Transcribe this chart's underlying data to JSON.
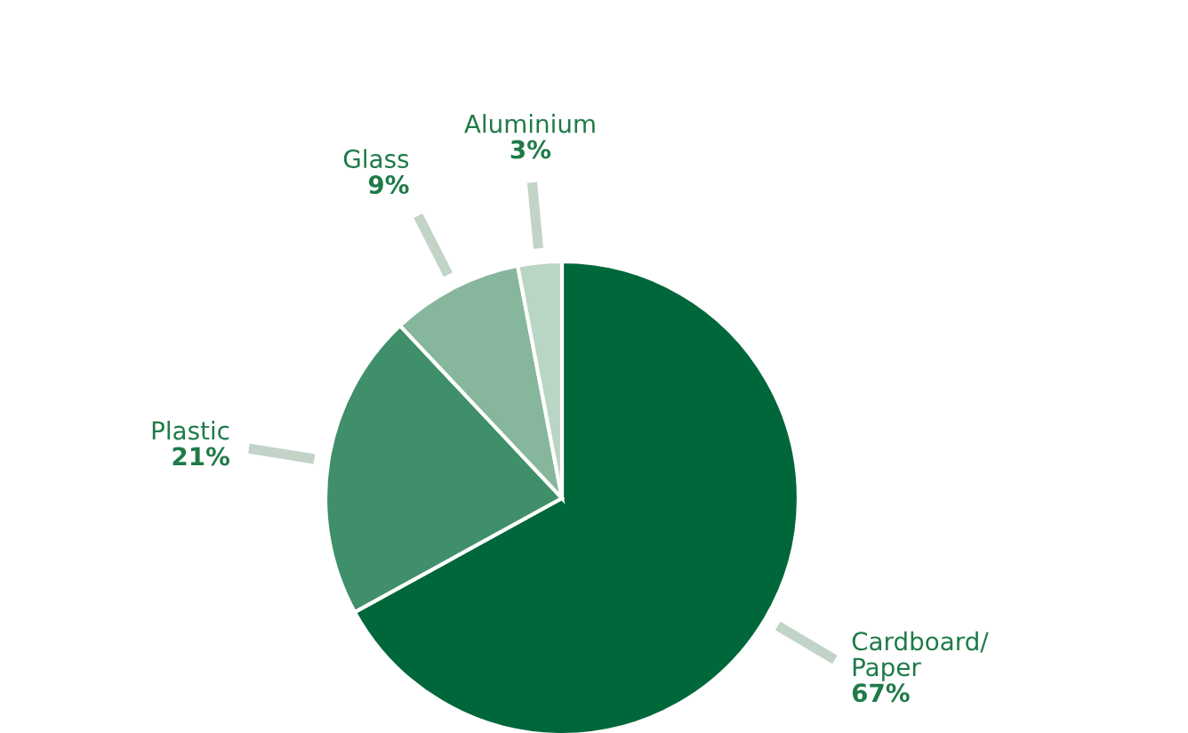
{
  "chart_data": {
    "type": "pie",
    "categories": [
      "Cardboard/\nPaper",
      "Plastic",
      "Glass",
      "Aluminium"
    ],
    "values": [
      67,
      21,
      9,
      3
    ],
    "colors": [
      "#00673a",
      "#3f8f6a",
      "#86b69b",
      "#b9d5c4"
    ],
    "value_labels": [
      "67%",
      "21%",
      "9%",
      "3%"
    ]
  }
}
